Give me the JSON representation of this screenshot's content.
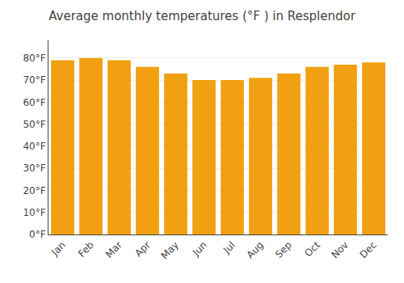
{
  "chart_data": {
    "type": "bar",
    "title": "Average monthly temperatures (°F ) in Resplendor",
    "categories": [
      "Jan",
      "Feb",
      "Mar",
      "Apr",
      "May",
      "Jun",
      "Jul",
      "Aug",
      "Sep",
      "Oct",
      "Nov",
      "Dec"
    ],
    "values": [
      79,
      80,
      79,
      76,
      73,
      70,
      70,
      71,
      73,
      76,
      77,
      78
    ],
    "color": "#F0A010",
    "ylim": [
      0,
      88
    ],
    "yticks": [
      {
        "value": 0,
        "label": "0°F"
      },
      {
        "value": 10,
        "label": "10°F"
      },
      {
        "value": 20,
        "label": "20°F"
      },
      {
        "value": 30,
        "label": "30°F"
      },
      {
        "value": 40,
        "label": "40°F"
      },
      {
        "value": 50,
        "label": "50°F"
      },
      {
        "value": 60,
        "label": "60°F"
      },
      {
        "value": 70,
        "label": "70°F"
      },
      {
        "value": 80,
        "label": "80°F"
      }
    ],
    "grid": true
  }
}
